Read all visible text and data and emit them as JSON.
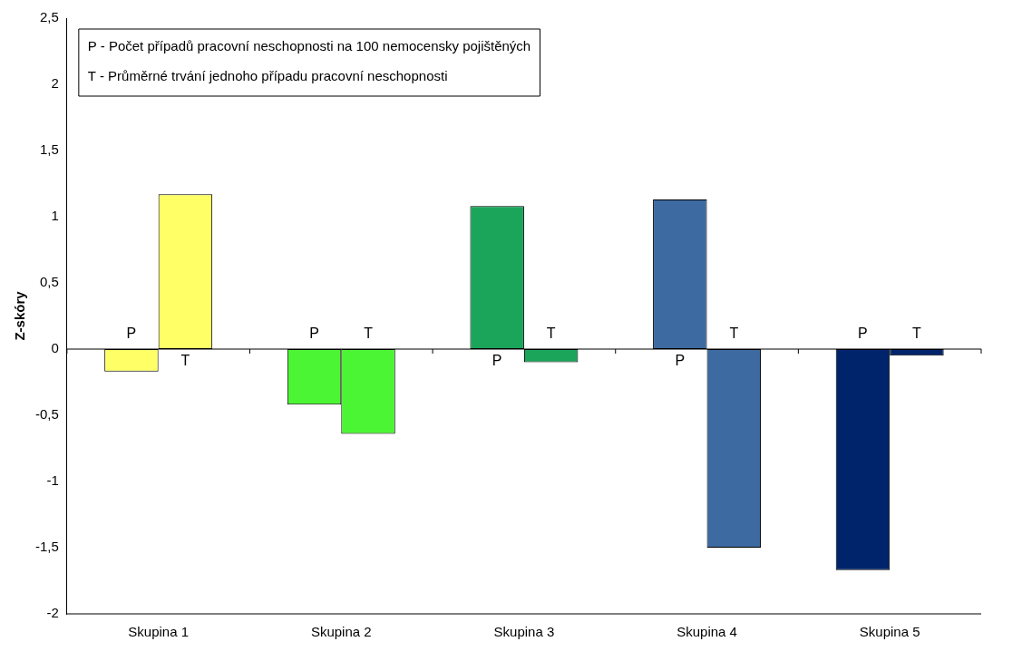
{
  "chart_data": {
    "type": "bar",
    "ylabel": "Z-skóry",
    "categories": [
      "Skupina 1",
      "Skupina 2",
      "Skupina 3",
      "Skupina 4",
      "Skupina 5"
    ],
    "series": [
      {
        "name": "P",
        "colors": [
          "#ffff66",
          "#4cf533",
          "#1aa55a",
          "#3d6aa0",
          "#00246b"
        ],
        "values": [
          -0.17,
          -0.42,
          1.08,
          1.13,
          -1.67
        ]
      },
      {
        "name": "T",
        "colors": [
          "#ffff66",
          "#4cf533",
          "#1aa55a",
          "#3d6aa0",
          "#00246b"
        ],
        "values": [
          1.17,
          -0.64,
          -0.1,
          -1.5,
          -0.05
        ]
      }
    ],
    "ylim": [
      -2,
      2.5
    ],
    "yticks": [
      -2,
      {
        "value": -1.5,
        "label": "-1,5"
      },
      -1,
      {
        "value": -0.5,
        "label": "-0,5"
      },
      0,
      {
        "value": 0.5,
        "label": "0,5"
      },
      1,
      {
        "value": 1.5,
        "label": "1,5"
      },
      2,
      {
        "value": 2.5,
        "label": "2,5"
      }
    ],
    "legend": false,
    "annotations": [
      "P - Počet případů pracovní neschopnosti na 100 nemocensky pojištěných",
      "T - Průměrné trvání jednoho případu pracovní neschopnosti"
    ]
  }
}
